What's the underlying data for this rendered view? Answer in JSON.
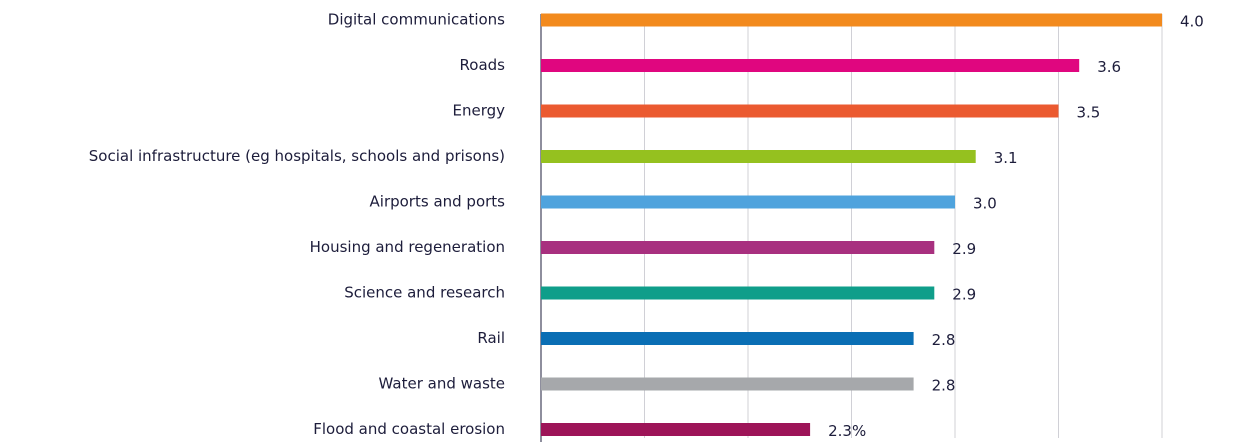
{
  "chart_data": {
    "type": "hbar",
    "categories": [
      "Digital communications",
      "Roads",
      "Energy",
      "Social infrastructure (eg hospitals, schools and prisons)",
      "Airports and ports",
      "Housing and regeneration",
      "Science and research",
      "Rail",
      "Water and waste",
      "Flood and coastal erosion"
    ],
    "values": [
      4.0,
      3.6,
      3.5,
      3.1,
      3.0,
      2.9,
      2.9,
      2.8,
      2.8,
      2.3
    ],
    "value_labels": [
      "4.0",
      "3.6",
      "3.5",
      "3.1",
      "3.0",
      "2.9",
      "2.9",
      "2.8",
      "2.8",
      "2.3%"
    ],
    "colors": [
      "#f28a1e",
      "#e0067f",
      "#eb5a30",
      "#95c11f",
      "#4fa3dd",
      "#a8307f",
      "#0f9e8a",
      "#0a6eb4",
      "#a6a8ab",
      "#9d1458"
    ],
    "xlim": [
      1,
      4
    ],
    "xticks": [
      1,
      1.5,
      2,
      2.5,
      3,
      3.5,
      4
    ],
    "grid": true
  }
}
